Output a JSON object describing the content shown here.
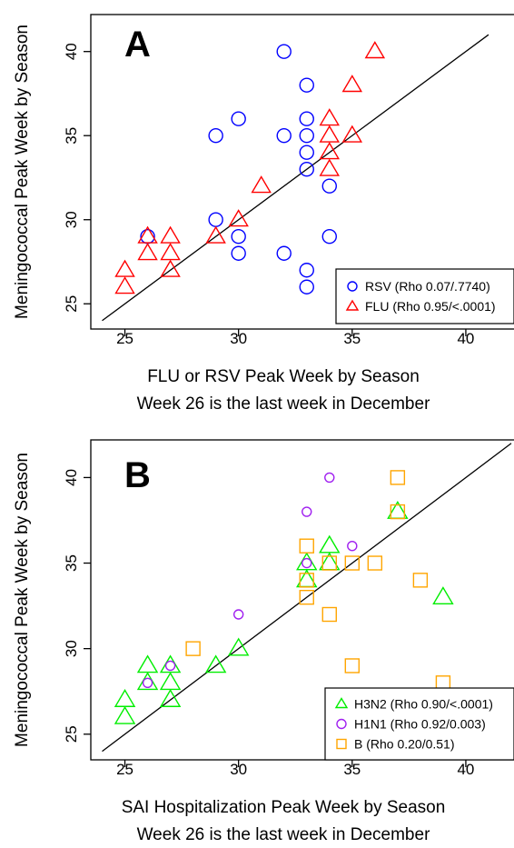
{
  "chart_data": [
    {
      "type": "scatter",
      "panel_label": "A",
      "xlabel": "FLU or RSV Peak Week by Season",
      "xlabel2": "Week 26 is the last week in December",
      "ylabel": "Meningococcal Peak Week by Season",
      "xlim": [
        23.5,
        42.2
      ],
      "ylim": [
        23.5,
        42.2
      ],
      "xticks": [
        25,
        30,
        35,
        40
      ],
      "yticks": [
        25,
        30,
        35,
        40
      ],
      "tick_labels_x": [
        "25",
        "30",
        "35",
        "40"
      ],
      "tick_labels_y": [
        "25",
        "30",
        "35",
        "40"
      ],
      "grid": false,
      "legend_position": "bottom-right",
      "reference_line": [
        [
          24,
          24
        ],
        [
          41,
          41
        ]
      ],
      "series": [
        {
          "name": "RSV (Rho 0.07/.7740)",
          "marker": "circle",
          "color": "#0000ff",
          "x": [
            26,
            29,
            29,
            30,
            30,
            30,
            32,
            32,
            32,
            33,
            33,
            33,
            33,
            33,
            33,
            33,
            34,
            34
          ],
          "y": [
            29,
            35,
            30,
            36,
            29,
            28,
            40,
            35,
            28,
            38,
            36,
            35,
            34,
            33,
            27,
            26,
            32,
            29
          ]
        },
        {
          "name": "FLU (Rho 0.95/<.0001)",
          "marker": "triangle",
          "color": "#ff0000",
          "x": [
            25,
            25,
            26,
            26,
            27,
            27,
            27,
            29,
            30,
            31,
            34,
            34,
            34,
            34,
            35,
            35,
            36
          ],
          "y": [
            27,
            26,
            29,
            28,
            29,
            28,
            27,
            29,
            30,
            32,
            36,
            35,
            34,
            33,
            38,
            35,
            40
          ]
        }
      ]
    },
    {
      "type": "scatter",
      "panel_label": "B",
      "xlabel": "SAI Hospitalization Peak Week by Season",
      "xlabel2": "Week 26 is the last week in December",
      "ylabel": "Meningococcal Peak Week by Season",
      "xlim": [
        23.5,
        42.2
      ],
      "ylim": [
        23.5,
        42.2
      ],
      "xticks": [
        25,
        30,
        35,
        40
      ],
      "yticks": [
        25,
        30,
        35,
        40
      ],
      "tick_labels_x": [
        "25",
        "30",
        "35",
        "40"
      ],
      "tick_labels_y": [
        "25",
        "30",
        "35",
        "40"
      ],
      "grid": false,
      "legend_position": "bottom-right",
      "reference_line": [
        [
          24,
          24
        ],
        [
          42,
          42
        ]
      ],
      "series": [
        {
          "name": "H3N2 (Rho 0.90/<.0001)",
          "marker": "triangle",
          "color": "#00ee00",
          "x": [
            25,
            25,
            26,
            26,
            27,
            27,
            27,
            29,
            30,
            33,
            33,
            34,
            34,
            37,
            39
          ],
          "y": [
            27,
            26,
            29,
            28,
            29,
            28,
            27,
            29,
            30,
            35,
            34,
            36,
            35,
            38,
            33
          ],
          "size": "large"
        },
        {
          "name": "H1N1 (Rho 0.92/0.003)",
          "marker": "circle",
          "color": "#a020f0",
          "x": [
            26,
            27,
            30,
            33,
            33,
            34,
            35
          ],
          "y": [
            28,
            29,
            32,
            38,
            35,
            40,
            36
          ],
          "size": "small"
        },
        {
          "name": "B (Rho 0.20/0.51)",
          "marker": "square",
          "color": "#ffa500",
          "x": [
            28,
            33,
            33,
            33,
            34,
            34,
            35,
            35,
            36,
            37,
            37,
            38,
            39
          ],
          "y": [
            30,
            36,
            34,
            33,
            35,
            32,
            35,
            29,
            35,
            40,
            38,
            34,
            28
          ],
          "size": "medium"
        }
      ]
    }
  ]
}
